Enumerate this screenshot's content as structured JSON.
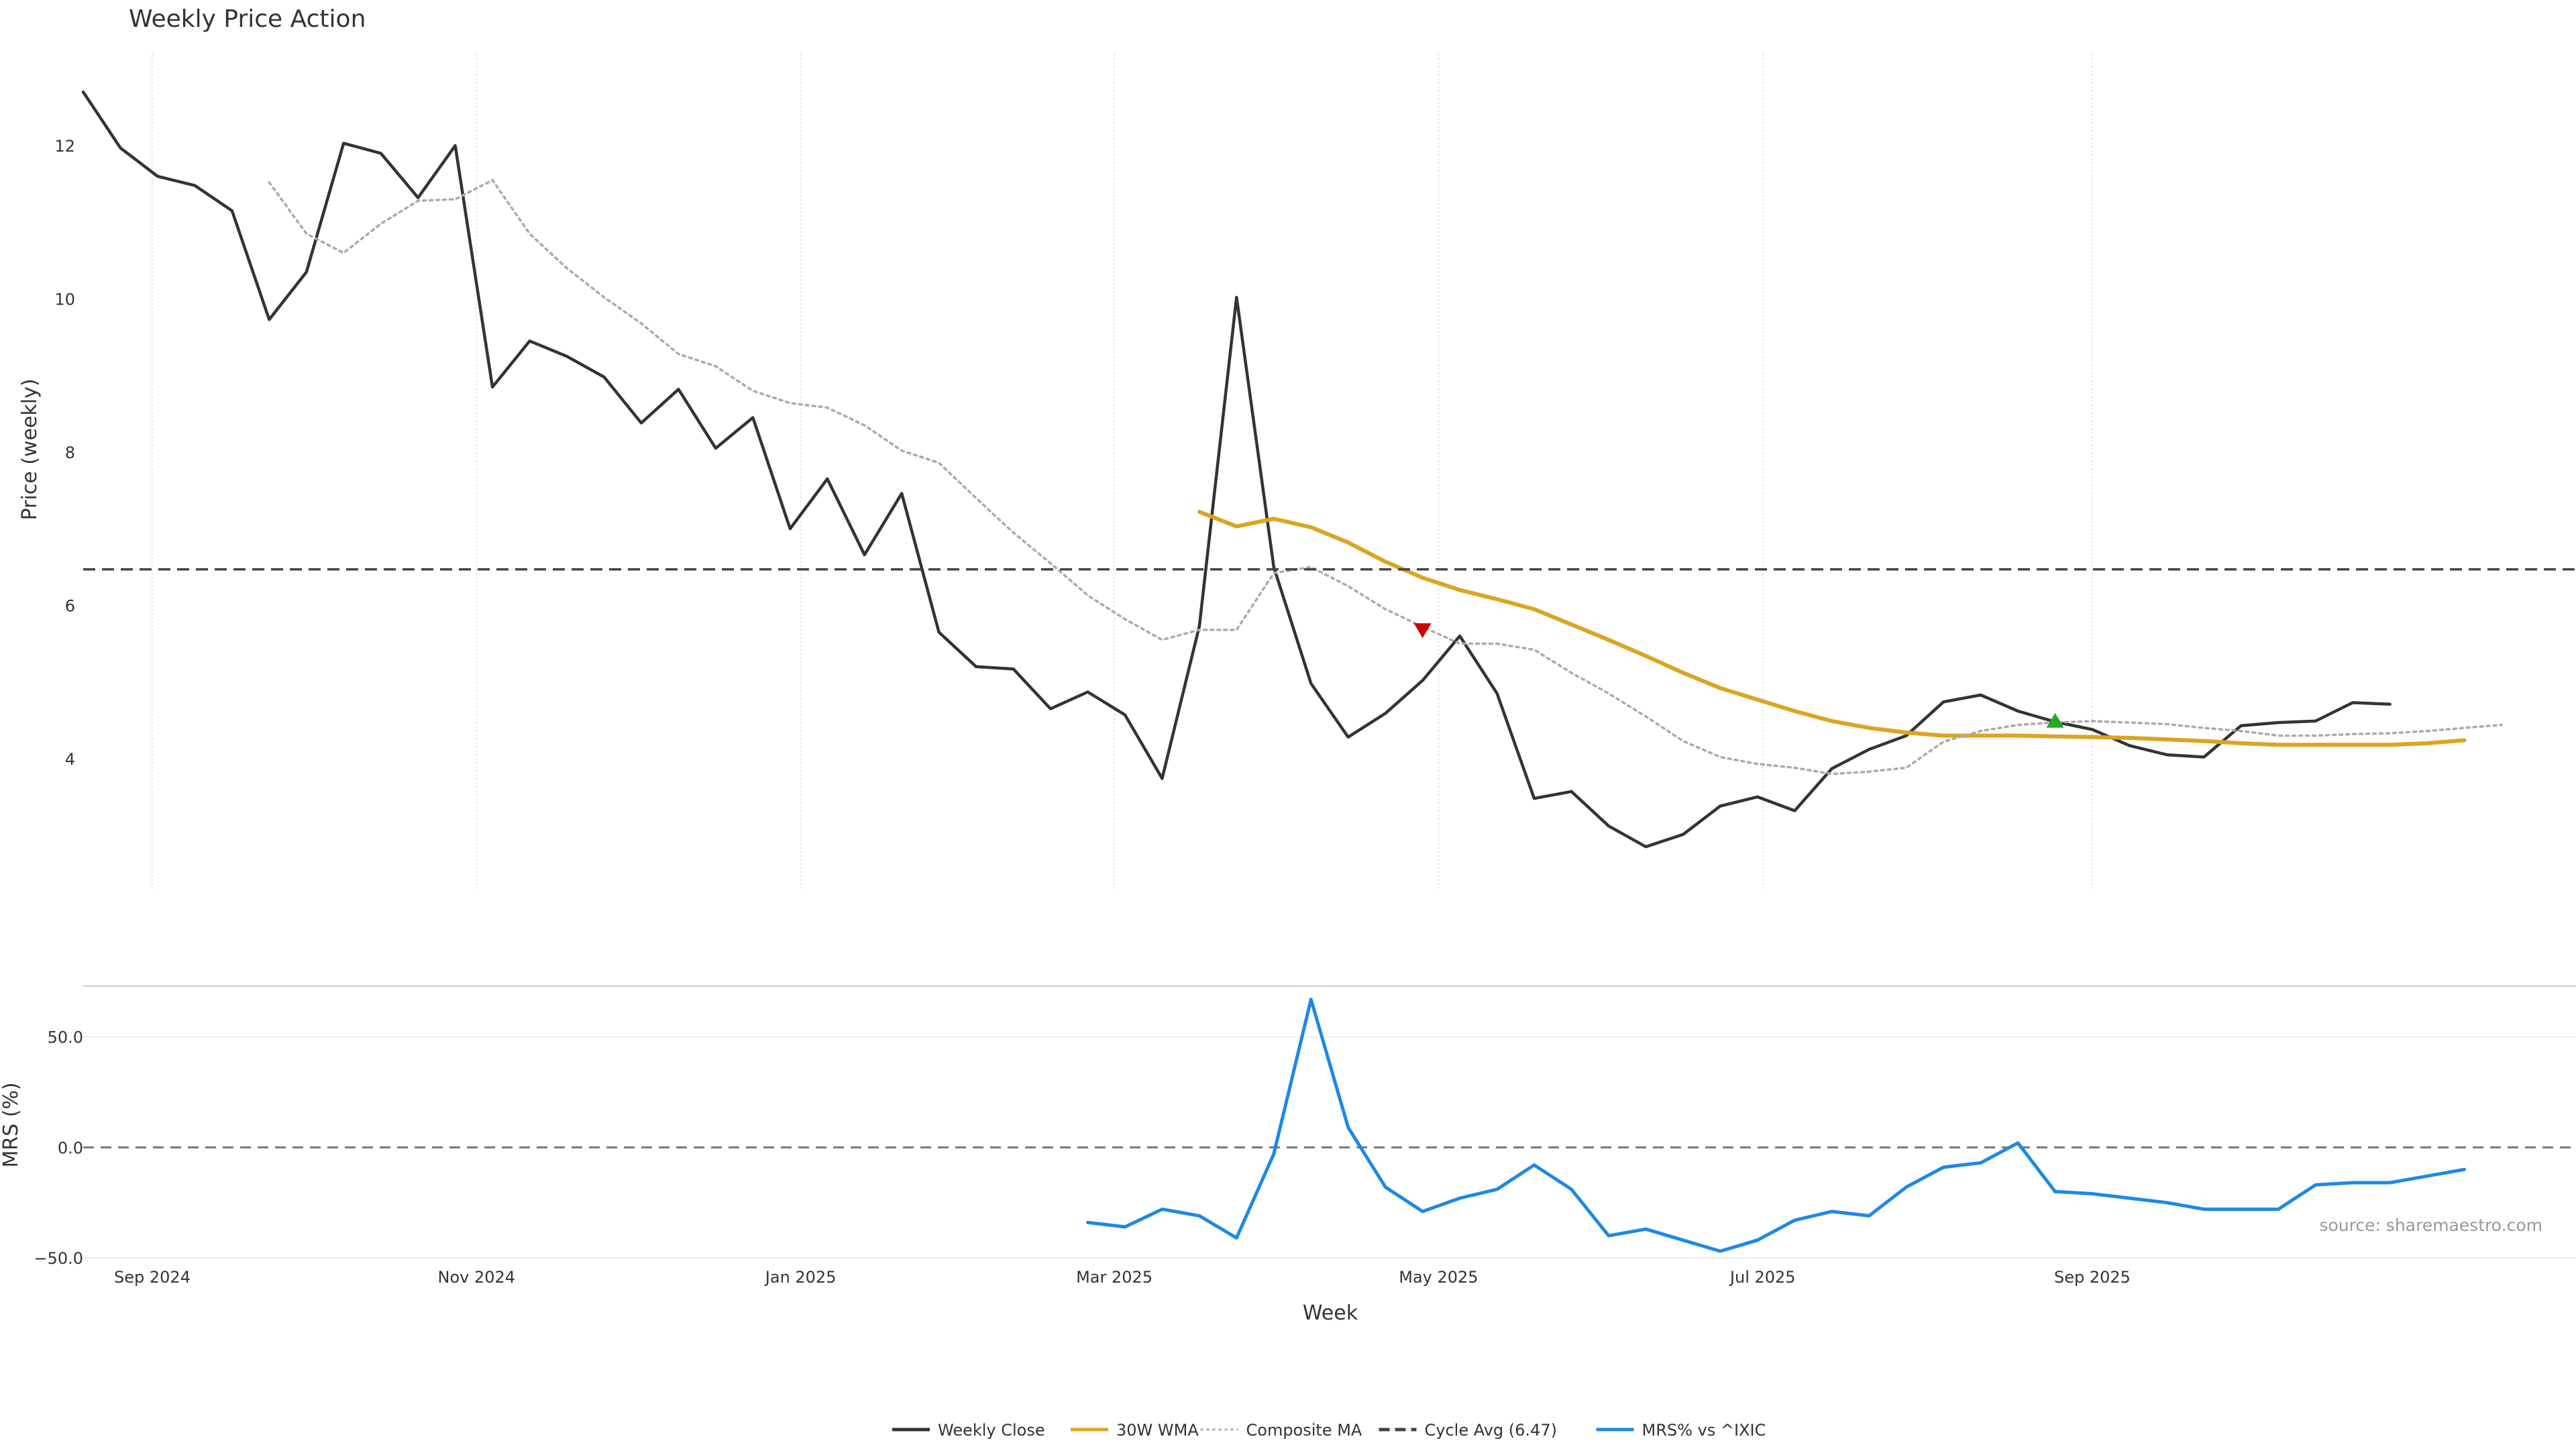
{
  "chart_data": [
    {
      "type": "line",
      "title": "Weekly Price Action",
      "ylabel": "Price (weekly)",
      "xlabel": "Week",
      "ylim": [
        2.3,
        13.2
      ],
      "x_start": "2024-08-19",
      "x_end": "2025-12-01",
      "x_ticks": [
        {
          "label": "Sep 2024",
          "date": "2024-09-01"
        },
        {
          "label": "Nov 2024",
          "date": "2024-11-01"
        },
        {
          "label": "Jan 2025",
          "date": "2025-01-01"
        },
        {
          "label": "Mar 2025",
          "date": "2025-03-01"
        },
        {
          "label": "May 2025",
          "date": "2025-05-01"
        },
        {
          "label": "Jul 2025",
          "date": "2025-07-01"
        },
        {
          "label": "Sep 2025",
          "date": "2025-09-01"
        }
      ],
      "y_ticks": [
        4,
        6,
        8,
        10,
        12
      ],
      "grid": "vertical",
      "series": [
        {
          "name": "Weekly Close",
          "color": "#333333",
          "style": "solid",
          "start_date": "2024-08-19",
          "values": [
            12.7,
            11.97,
            11.6,
            11.48,
            11.15,
            9.73,
            10.35,
            12.03,
            11.9,
            11.32,
            12.0,
            8.85,
            9.45,
            9.25,
            8.98,
            8.38,
            8.82,
            8.05,
            8.45,
            7.0,
            7.65,
            6.66,
            7.46,
            5.65,
            5.2,
            5.17,
            4.65,
            4.87,
            4.57,
            3.74,
            5.73,
            10.02,
            6.5,
            4.98,
            4.28,
            4.59,
            5.02,
            5.6,
            4.85,
            3.48,
            3.57,
            3.12,
            2.85,
            3.01,
            3.38,
            3.5,
            3.32,
            3.87,
            4.12,
            4.3,
            4.74,
            4.83,
            4.62,
            4.48,
            4.38,
            4.17,
            4.05,
            4.02,
            4.43,
            4.47,
            4.49,
            4.73,
            4.71
          ]
        },
        {
          "name": "30W WMA",
          "color": "#DAA520",
          "style": "solid",
          "start_date": "2025-03-17",
          "values": [
            7.22,
            7.03,
            7.13,
            7.02,
            6.82,
            6.57,
            6.36,
            6.2,
            6.08,
            5.95,
            5.75,
            5.55,
            5.34,
            5.12,
            4.92,
            4.77,
            4.62,
            4.49,
            4.4,
            4.34,
            4.3,
            4.3,
            4.3,
            4.29,
            4.28,
            4.27,
            4.25,
            4.23,
            4.2,
            4.18,
            4.18,
            4.18,
            4.18,
            4.2,
            4.24
          ]
        },
        {
          "name": "Composite MA",
          "color": "#aaaaaa",
          "style": "dotted",
          "start_date": "2024-09-23",
          "values": [
            11.52,
            10.85,
            10.6,
            10.98,
            11.28,
            11.3,
            11.55,
            10.85,
            10.4,
            10.02,
            9.68,
            9.28,
            9.12,
            8.8,
            8.64,
            8.58,
            8.35,
            8.02,
            7.86,
            7.4,
            6.95,
            6.55,
            6.13,
            5.82,
            5.55,
            5.68,
            5.68,
            6.42,
            6.5,
            6.25,
            5.95,
            5.72,
            5.5,
            5.5,
            5.42,
            5.12,
            4.85,
            4.55,
            4.23,
            4.02,
            3.93,
            3.88,
            3.8,
            3.83,
            3.88,
            4.22,
            4.36,
            4.44,
            4.47,
            4.49,
            4.47,
            4.45,
            4.4,
            4.36,
            4.3,
            4.3,
            4.32,
            4.33,
            4.36,
            4.4,
            4.44
          ]
        },
        {
          "name": "Cycle Avg (6.47)",
          "color": "#444444",
          "style": "dashed",
          "value": 6.47
        }
      ],
      "markers": [
        {
          "type": "down",
          "color": "#CC0000",
          "date": "2025-04-28",
          "y": 5.67
        },
        {
          "type": "up",
          "color": "#22AA22",
          "date": "2025-08-25",
          "y": 4.5
        }
      ]
    },
    {
      "type": "line",
      "ylabel": "MRS (%)",
      "ylim": [
        -50,
        73
      ],
      "y_ticks": [
        -50.0,
        0.0,
        50.0
      ],
      "y_tick_labels": [
        "−50.0",
        "0.0",
        "50.0"
      ],
      "zero_line": true,
      "series": [
        {
          "name": "MRS% vs ^IXIC",
          "color": "#1E88E5",
          "style": "solid",
          "start_date": "2025-02-24",
          "values": [
            -34,
            -36,
            -28,
            -31,
            -41,
            -3,
            67,
            9,
            -18,
            -29,
            -23,
            -19,
            -8,
            -19,
            -40,
            -37,
            -42,
            -47,
            -42,
            -33,
            -29,
            -31,
            -18,
            -9,
            -7,
            2,
            -20,
            -21,
            -23,
            -25,
            -28,
            -28,
            -28,
            -17,
            -16,
            -16,
            -13,
            -10
          ]
        }
      ]
    }
  ],
  "legend": {
    "placement": "bottom-center",
    "items": [
      {
        "label": "Weekly Close",
        "color": "#333333",
        "style": "solid"
      },
      {
        "label": "30W WMA",
        "color": "#DAA520",
        "style": "solid"
      },
      {
        "label": "Composite MA",
        "color": "#aaaaaa",
        "style": "dotted"
      },
      {
        "label": "Cycle Avg (6.47)",
        "color": "#444444",
        "style": "dashed"
      },
      {
        "label": "MRS% vs ^IXIC",
        "color": "#1E88E5",
        "style": "solid"
      }
    ]
  },
  "source_text": "source: sharemaestro.com"
}
